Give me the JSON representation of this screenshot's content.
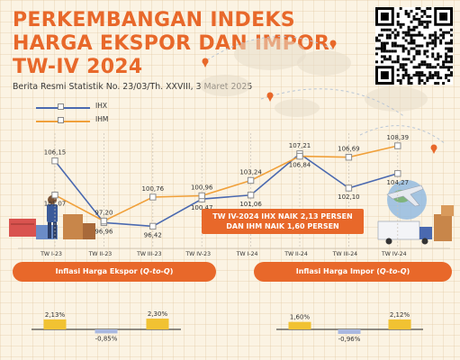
{
  "header": {
    "title_lines": [
      "PERKEMBANGAN INDEKS",
      "HARGA EKSPOR DAN IMPOR",
      "TW-IV 2024"
    ],
    "subtitle": "Berita Resmi Statistik No. 23/03/Th. XXVIII, 3 Maret 2025"
  },
  "qr_icon": "qr-code-icon",
  "colors": {
    "accent": "#e8682a",
    "ihx": "#4a69b0",
    "ihm": "#f0a03a",
    "bar_pos": "#f1c232",
    "bar_neg": "#a9b8e0"
  },
  "callout": {
    "line1": "TW IV-2024 IHX NAIK 2,13 PERSEN",
    "line2": "DAN IHM NAIK 1,60 PERSEN"
  },
  "inflasi": {
    "ekspor": {
      "prefix": "Inflasi Harga Ekspor (",
      "qtoq": "Q-to-Q",
      "suffix": ")"
    },
    "impor": {
      "prefix": "Inflasi Harga Impor (",
      "qtoq": "Q-to-Q",
      "suffix": ")"
    }
  },
  "chart_data": [
    {
      "type": "line",
      "categories": [
        "TW I-23",
        "TW II-23",
        "TW III-23",
        "TW IV-23",
        "TW I-24",
        "TW II-24",
        "TW III-24",
        "TW IV-24"
      ],
      "series": [
        {
          "name": "IHX",
          "values": [
            106.15,
            96.96,
            96.42,
            100.47,
            101.06,
            107.21,
            102.1,
            104.27
          ],
          "labels": [
            "106,15",
            "96,96",
            "96,42",
            "100,47",
            "101,06",
            "107,21",
            "102,10",
            "104,27"
          ]
        },
        {
          "name": "IHM",
          "values": [
            101.07,
            97.2,
            100.76,
            100.96,
            103.24,
            106.84,
            106.69,
            108.39
          ],
          "labels": [
            "101,07",
            "97,20",
            "100,76",
            "100,96",
            "103,24",
            "106,84",
            "106,69",
            "108,39"
          ]
        }
      ],
      "ylim": [
        95,
        110
      ],
      "legend": "top-left"
    },
    {
      "type": "bar",
      "title": "Inflasi Harga Ekspor (Q-to-Q)",
      "values": [
        2.13,
        -0.85,
        2.3
      ],
      "labels": [
        "2,13%",
        "-0,85%",
        "2,30%"
      ]
    },
    {
      "type": "bar",
      "title": "Inflasi Harga Impor (Q-to-Q)",
      "values": [
        1.6,
        -0.96,
        2.12
      ],
      "labels": [
        "1,60%",
        "-0,96%",
        "2,12%"
      ]
    }
  ]
}
